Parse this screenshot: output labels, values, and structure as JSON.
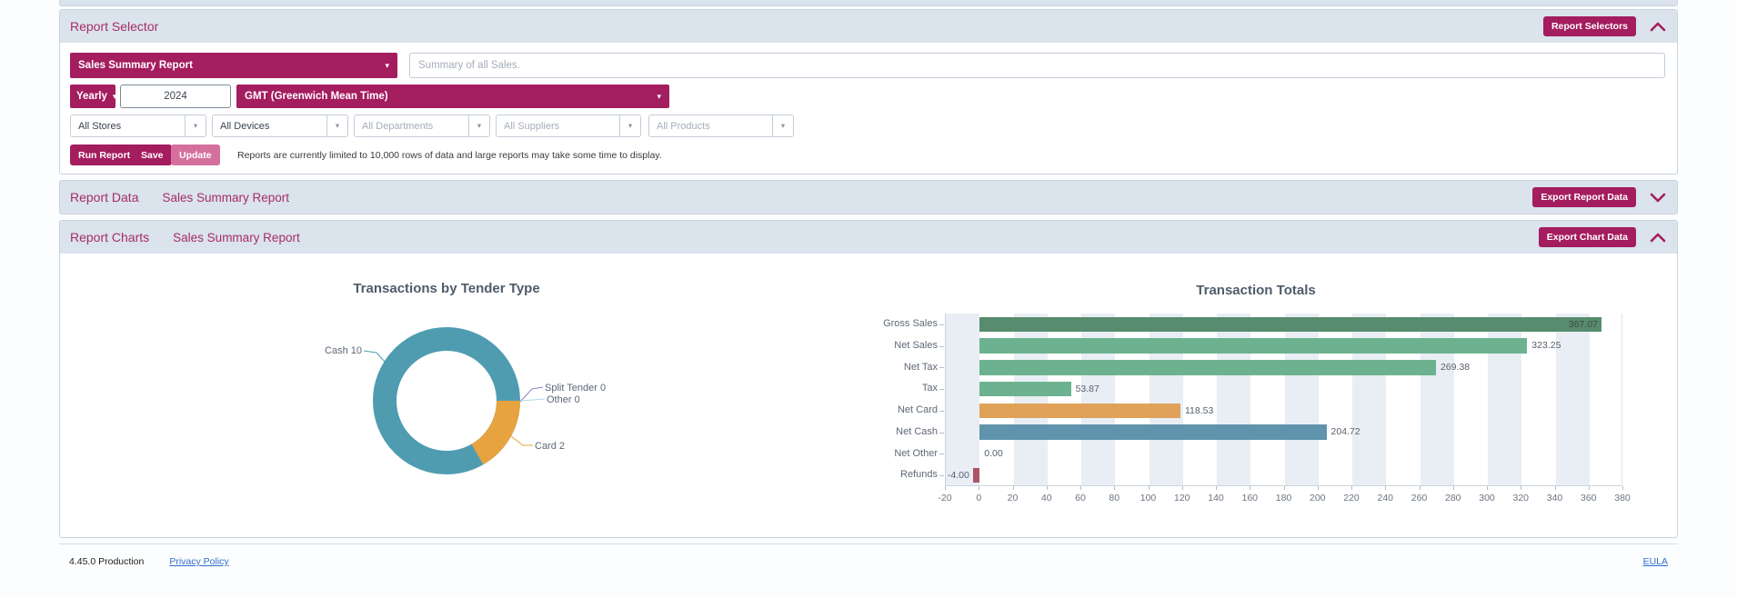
{
  "report_selector": {
    "title": "Report Selector",
    "toggle_button": "Report Selectors",
    "report_dropdown": "Sales Summary Report",
    "summary_placeholder": "Summary of all Sales.",
    "period_dropdown": "Yearly",
    "year_value": "2024",
    "timezone_dropdown": "GMT (Greenwich Mean Time)",
    "filters": [
      {
        "label": "All Stores",
        "is_placeholder": false
      },
      {
        "label": "All Devices",
        "is_placeholder": false
      },
      {
        "label": "All Departments",
        "is_placeholder": true
      },
      {
        "label": "All Suppliers",
        "is_placeholder": true
      },
      {
        "label": "All Products",
        "is_placeholder": true
      }
    ],
    "run_button": "Run Report",
    "save_button": "Save",
    "update_button": "Update",
    "note": "Reports are currently limited to 10,000 rows of data and large reports may take some time to display."
  },
  "report_data": {
    "title": "Report Data",
    "subtitle": "Sales Summary Report",
    "export_button": "Export Report Data"
  },
  "report_charts": {
    "title": "Report Charts",
    "subtitle": "Sales Summary Report",
    "export_button": "Export Chart Data"
  },
  "footer": {
    "version": "4.45.0 Production",
    "privacy_link": "Privacy Policy",
    "eula_link": "EULA"
  },
  "chart_data": [
    {
      "type": "pie",
      "donut": true,
      "title": "Transactions by Tender Type",
      "labels": [
        "Cash",
        "Split Tender",
        "Other",
        "Card"
      ],
      "values": [
        10,
        0,
        0,
        2
      ],
      "colors": [
        "#4f9cb1",
        "#9285c5",
        "#abdbea",
        "#e7a33f"
      ],
      "legend_position": "none"
    },
    {
      "type": "bar",
      "orientation": "horizontal",
      "title": "Transaction Totals",
      "categories": [
        "Gross Sales",
        "Net Sales",
        "Net Tax",
        "Tax",
        "Net Card",
        "Net Cash",
        "Net Other",
        "Refunds"
      ],
      "values": [
        367.07,
        323.25,
        269.38,
        53.87,
        118.53,
        204.72,
        0.0,
        -4.0
      ],
      "value_labels": [
        "367.07",
        "323.25",
        "269.38",
        "53.87",
        "118.53",
        "204.72",
        "0.00",
        "-4.00"
      ],
      "colors": [
        "#578c6e",
        "#6db290",
        "#6db290",
        "#6db290",
        "#dfa258",
        "#6094ac",
        "#6db290",
        "#ad5367"
      ],
      "xlim": [
        -20,
        380
      ],
      "tick_step": 20,
      "grid": "striped-bands"
    }
  ]
}
